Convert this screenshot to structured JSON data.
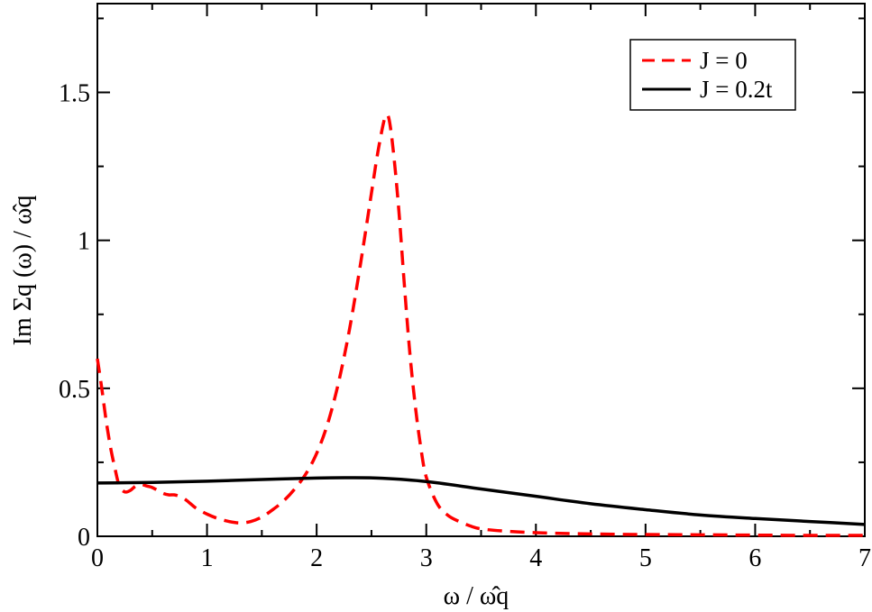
{
  "chart_data": {
    "type": "line",
    "xlabel": "ω / ω̂q",
    "ylabel": "Im Σq (ω) / ω̂q",
    "xlim": [
      0,
      7
    ],
    "ylim": [
      0,
      1.8
    ],
    "x_ticks": [
      "0",
      "1",
      "2",
      "3",
      "4",
      "5",
      "6",
      "7"
    ],
    "y_ticks": [
      "0",
      "0.5",
      "1",
      "1.5"
    ],
    "grid": false,
    "legend_position": "top-right",
    "series": [
      {
        "name": "J = 0",
        "color": "#ff0000",
        "style": "dashed",
        "x": [
          0.0,
          0.04,
          0.08,
          0.12,
          0.16,
          0.2,
          0.25,
          0.3,
          0.35,
          0.4,
          0.45,
          0.5,
          0.55,
          0.6,
          0.65,
          0.7,
          0.75,
          0.8,
          0.85,
          0.9,
          1.0,
          1.1,
          1.2,
          1.3,
          1.4,
          1.5,
          1.6,
          1.7,
          1.8,
          1.9,
          2.0,
          2.1,
          2.2,
          2.3,
          2.4,
          2.5,
          2.55,
          2.6,
          2.63,
          2.66,
          2.7,
          2.75,
          2.8,
          2.85,
          2.9,
          2.95,
          3.0,
          3.1,
          3.2,
          3.3,
          3.4,
          3.5,
          3.7,
          4.0,
          4.5,
          5.0,
          5.5,
          6.0,
          6.5,
          7.0
        ],
        "y": [
          0.6,
          0.5,
          0.39,
          0.3,
          0.23,
          0.17,
          0.15,
          0.155,
          0.17,
          0.175,
          0.17,
          0.165,
          0.155,
          0.145,
          0.14,
          0.14,
          0.135,
          0.125,
          0.11,
          0.095,
          0.075,
          0.06,
          0.05,
          0.045,
          0.05,
          0.065,
          0.09,
          0.12,
          0.16,
          0.21,
          0.28,
          0.38,
          0.52,
          0.7,
          0.92,
          1.16,
          1.28,
          1.38,
          1.42,
          1.41,
          1.3,
          1.1,
          0.85,
          0.62,
          0.44,
          0.3,
          0.2,
          0.11,
          0.07,
          0.05,
          0.035,
          0.025,
          0.018,
          0.012,
          0.008,
          0.006,
          0.005,
          0.004,
          0.003,
          0.003
        ]
      },
      {
        "name": "J = 0.2t",
        "color": "#000000",
        "style": "solid",
        "x": [
          0.0,
          0.5,
          1.0,
          1.5,
          2.0,
          2.3,
          2.6,
          3.0,
          3.5,
          4.0,
          4.5,
          5.0,
          5.5,
          6.0,
          6.5,
          7.0
        ],
        "y": [
          0.18,
          0.182,
          0.186,
          0.192,
          0.197,
          0.198,
          0.196,
          0.185,
          0.16,
          0.135,
          0.11,
          0.09,
          0.072,
          0.06,
          0.05,
          0.04
        ]
      }
    ]
  }
}
